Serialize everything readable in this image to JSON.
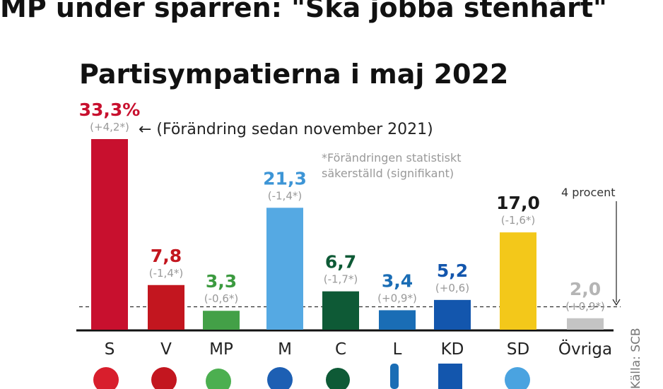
{
  "headline": "MP under sparren: \"Ska jobba stenhårt\"",
  "chart_data": {
    "type": "bar",
    "title": "Partisympatierna i maj 2022",
    "categories": [
      "S",
      "V",
      "MP",
      "M",
      "C",
      "L",
      "KD",
      "SD",
      "Övriga"
    ],
    "values": [
      33.3,
      7.8,
      3.3,
      21.3,
      6.7,
      3.4,
      5.2,
      17.0,
      2.0
    ],
    "value_labels": [
      "33,3%",
      "7,8",
      "3,3",
      "21,3",
      "6,7",
      "3,4",
      "5,2",
      "17,0",
      "2,0"
    ],
    "changes": [
      "(+4,2*)",
      "(-1,4*)",
      "(-0,6*)",
      "(-1,4*)",
      "(-1,7*)",
      "(+0,9*)",
      "(+0,6)",
      "(-1,6*)",
      "(+0,9*)"
    ],
    "colors": [
      "#c8102e",
      "#c3161f",
      "#43a047",
      "#55a9e3",
      "#0e5a36",
      "#1a6db5",
      "#1356ad",
      "#f3c81a",
      "#c4c4c4"
    ],
    "label_colors": [
      "#c8102e",
      "#c3161f",
      "#3b9a3f",
      "#3d95d6",
      "#0e5a36",
      "#1a6db5",
      "#1356ad",
      "#1a1a1a",
      "#b5b5b5"
    ],
    "change_note": "← (Förändring sedan november 2021)",
    "significance_note": [
      "*Förändringen statistiskt",
      "säkerställd (signifikant)"
    ],
    "threshold": 4,
    "threshold_label": "4 procent",
    "source": "Källa: SCB"
  }
}
